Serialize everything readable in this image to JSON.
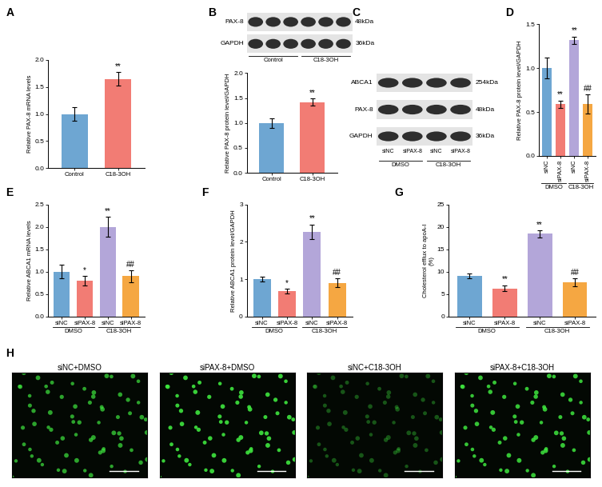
{
  "chart_data": [
    {
      "type": "bar",
      "panel": "A",
      "ylabel": "Relative PAX-8 mRNA levels",
      "categories": [
        "Control",
        "C18-3OH"
      ],
      "values": [
        1.0,
        1.65
      ],
      "errors": [
        0.12,
        0.13
      ],
      "colors": [
        "#6ea6d2",
        "#f27c74"
      ],
      "significance": [
        null,
        "**"
      ],
      "ylim": [
        0,
        2.0
      ],
      "yticks": [
        {
          "value": 0,
          "label": "0.0"
        },
        0.5,
        {
          "value": 1.0,
          "label": "1.0"
        },
        1.5,
        {
          "value": 2.0,
          "label": "2.0"
        }
      ]
    },
    {
      "type": "bar",
      "panel": "B",
      "ylabel": "Relative PAX-8 protein level/GAPDH",
      "categories": [
        "Control",
        "C18-3OH"
      ],
      "values": [
        1.0,
        1.42
      ],
      "errors": [
        0.1,
        0.07
      ],
      "colors": [
        "#6ea6d2",
        "#f27c74"
      ],
      "significance": [
        null,
        "**"
      ],
      "ylim": [
        0,
        2.0
      ],
      "yticks": [
        {
          "value": 0,
          "label": "0.0"
        },
        0.5,
        {
          "value": 1.0,
          "label": "1.0"
        },
        1.5,
        {
          "value": 2.0,
          "label": "2.0"
        }
      ]
    },
    {
      "type": "bar",
      "panel": "D",
      "ylabel": "Relative PAX-8 protein level/GAPDH",
      "categories": [
        "siNC",
        "siPAX-8",
        "siNC",
        "siPAX-8"
      ],
      "groups": [
        "DMSO",
        "C18-3OH"
      ],
      "values": [
        1.0,
        0.59,
        1.32,
        0.59
      ],
      "errors": [
        0.12,
        0.04,
        0.04,
        0.11
      ],
      "colors": [
        "#6ea6d2",
        "#f27c74",
        "#b3a6d9",
        "#f5a742"
      ],
      "significance": [
        null,
        "**",
        "**",
        "##"
      ],
      "ylim": [
        0,
        1.5
      ],
      "yticks": [
        {
          "value": 0,
          "label": "0.0"
        },
        0.5,
        {
          "value": 1.0,
          "label": "1.0"
        },
        1.5
      ]
    },
    {
      "type": "bar",
      "panel": "E",
      "ylabel": "Relative ABCA1 mRNA levels",
      "categories": [
        "siNC",
        "siPAX-8",
        "siNC",
        "siPAX-8"
      ],
      "groups": [
        "DMSO",
        "C18-3OH"
      ],
      "values": [
        1.0,
        0.8,
        2.0,
        0.9
      ],
      "errors": [
        0.15,
        0.1,
        0.22,
        0.13
      ],
      "colors": [
        "#6ea6d2",
        "#f27c74",
        "#b3a6d9",
        "#f5a742"
      ],
      "significance": [
        null,
        "*",
        "**",
        "##"
      ],
      "ylim": [
        0,
        2.5
      ],
      "yticks": [
        {
          "value": 0,
          "label": "0.0"
        },
        0.5,
        {
          "value": 1.0,
          "label": "1.0"
        },
        1.5,
        {
          "value": 2.0,
          "label": "2.0"
        },
        2.5
      ]
    },
    {
      "type": "bar",
      "panel": "F",
      "ylabel": "Relative ABCA1 protein level/GAPDH",
      "categories": [
        "siNC",
        "siPAX-8",
        "siNC",
        "siPAX-8"
      ],
      "groups": [
        "DMSO",
        "C18-3OH"
      ],
      "values": [
        1.0,
        0.68,
        2.27,
        0.9
      ],
      "errors": [
        0.06,
        0.06,
        0.2,
        0.12
      ],
      "colors": [
        "#6ea6d2",
        "#f27c74",
        "#b3a6d9",
        "#f5a742"
      ],
      "significance": [
        null,
        "*",
        "**",
        "##"
      ],
      "ylim": [
        0,
        3
      ],
      "yticks": [
        0,
        1,
        2,
        3
      ]
    },
    {
      "type": "bar",
      "panel": "G",
      "ylabel": "Cholesterol efflux to apoA-I\n(%)",
      "categories": [
        "siNC",
        "siPAX-8",
        "siNC",
        "siPAX-8"
      ],
      "groups": [
        "DMSO",
        "C18-3OH"
      ],
      "values": [
        9.1,
        6.3,
        18.5,
        7.6
      ],
      "errors": [
        0.5,
        0.7,
        0.8,
        0.9
      ],
      "colors": [
        "#6ea6d2",
        "#f27c74",
        "#b3a6d9",
        "#f5a742"
      ],
      "significance": [
        null,
        "**",
        "**",
        "##"
      ],
      "ylim": [
        0,
        25
      ],
      "yticks": [
        0,
        5,
        10,
        15,
        20,
        25
      ]
    }
  ],
  "blots": [
    {
      "rows": [
        {
          "name": "PAX-8",
          "size": "48kDa"
        },
        {
          "name": "GAPDH",
          "size": "36kDa"
        }
      ],
      "groups": [
        "Control",
        "C18-3OH"
      ]
    },
    {
      "panel": "C",
      "rows": [
        {
          "name": "ABCA1",
          "size": "254kDa"
        },
        {
          "name": "PAX-8",
          "size": "48kDa"
        },
        {
          "name": "GAPDH",
          "size": "36kDa"
        }
      ],
      "lanes": [
        "siNC",
        "siPAX-8",
        "siNC",
        "siPAX-8"
      ],
      "groups": [
        "DMSO",
        "C18-3OH"
      ]
    }
  ],
  "images": {
    "panel": "H",
    "titles": [
      "siNC+DMSO",
      "siPAX-8+DMSO",
      "siNC+C18-3OH",
      "siPAX-8+C18-3OH"
    ]
  }
}
